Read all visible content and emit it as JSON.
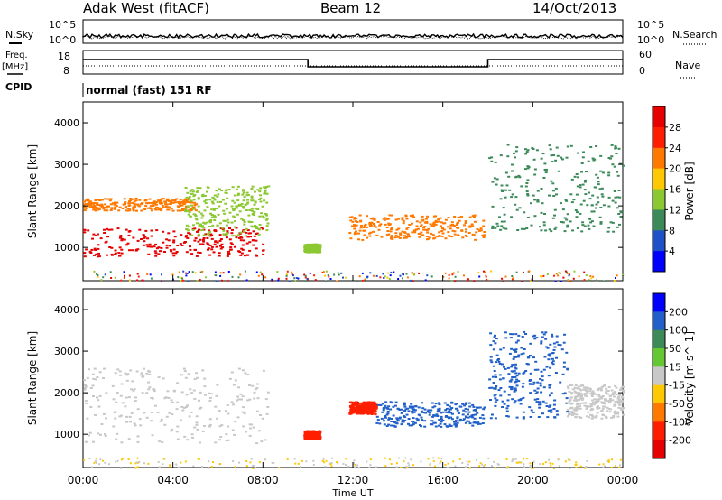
{
  "header": {
    "station": "Adak West (fitACF)",
    "beam": "Beam 12",
    "date": "14/Oct/2013"
  },
  "status": {
    "nsky_label": "N.Sky",
    "nsearch_label": "N.Search",
    "log_top": "10^5",
    "log_bottom": "10^0",
    "log_top_right": "10^5",
    "log_bottom_right": "10^0",
    "freq_label": "Freq.",
    "freq_unit": "[MHz]",
    "freq_top": "18",
    "freq_bottom": "8",
    "nave_label": "Nave",
    "nave_top": "60",
    "nave_bottom": "0",
    "cpid_label": "CPID",
    "cpid_value": "normal (fast) 151 RF"
  },
  "colors": {
    "ground_scatter": "#c8c8c8"
  },
  "chart_data": [
    {
      "type": "heatmap",
      "title": "",
      "xlabel": "",
      "ylabel": "Slant Range [km]",
      "colorbar_label": "Power [dB]",
      "colorbar_ticks": [
        "4",
        "8",
        "12",
        "16",
        "20",
        "24",
        "28"
      ],
      "colorbar_colors": [
        "#0000ff",
        "#1e50c8",
        "#3c8a5a",
        "#8cc832",
        "#ffc800",
        "#ff7800",
        "#ff1e00",
        "#e60000"
      ],
      "x_ticks": [
        "00:00",
        "04:00",
        "08:00",
        "12:00",
        "16:00",
        "20:00",
        "00:00"
      ],
      "y_ticks": [
        "1000",
        "2000",
        "3000",
        "4000"
      ],
      "xlim": [
        0,
        24
      ],
      "ylim": [
        200,
        4500
      ],
      "regions": [
        {
          "t": [
            0,
            8
          ],
          "r": [
            800,
            1500
          ],
          "level": 28
        },
        {
          "t": [
            0,
            5
          ],
          "r": [
            1900,
            2200
          ],
          "level": 22
        },
        {
          "t": [
            4.5,
            8.2
          ],
          "r": [
            1300,
            2500
          ],
          "level": 14
        },
        {
          "t": [
            9.8,
            10.5
          ],
          "r": [
            900,
            1100
          ],
          "level": 12
        },
        {
          "t": [
            11.8,
            17.8
          ],
          "r": [
            1200,
            1800
          ],
          "level": 22
        },
        {
          "t": [
            18,
            24
          ],
          "r": [
            1400,
            3500
          ],
          "level": 8
        }
      ]
    },
    {
      "type": "heatmap",
      "title": "",
      "xlabel": "Time UT",
      "ylabel": "Slant Range [km]",
      "colorbar_label": "Velocity [m s^-1]",
      "colorbar_ticks": [
        "200",
        "100",
        "50",
        "15",
        "-15",
        "-50",
        "-100",
        "-200"
      ],
      "colorbar_colors": [
        "#0000ff",
        "#2060c8",
        "#3c8a5a",
        "#64c832",
        "#c8c8c8",
        "#ffc800",
        "#ff7800",
        "#ff1e00",
        "#e60000"
      ],
      "x_ticks": [
        "00:00",
        "04:00",
        "08:00",
        "12:00",
        "16:00",
        "20:00",
        "00:00"
      ],
      "y_ticks": [
        "1000",
        "2000",
        "3000",
        "4000"
      ],
      "xlim": [
        0,
        24
      ],
      "ylim": [
        200,
        4500
      ],
      "regions": [
        {
          "t": [
            0,
            8.2
          ],
          "r": [
            800,
            2600
          ],
          "level": 0
        },
        {
          "t": [
            9.8,
            10.5
          ],
          "r": [
            900,
            1100
          ],
          "level": -120
        },
        {
          "t": [
            11.8,
            13
          ],
          "r": [
            1500,
            1800
          ],
          "level": -150
        },
        {
          "t": [
            13,
            17.8
          ],
          "r": [
            1200,
            1800
          ],
          "level": 150
        },
        {
          "t": [
            18,
            21.5
          ],
          "r": [
            1400,
            3500
          ],
          "level": 180
        },
        {
          "t": [
            21.5,
            24
          ],
          "r": [
            1400,
            2200
          ],
          "level": 0
        }
      ]
    }
  ]
}
